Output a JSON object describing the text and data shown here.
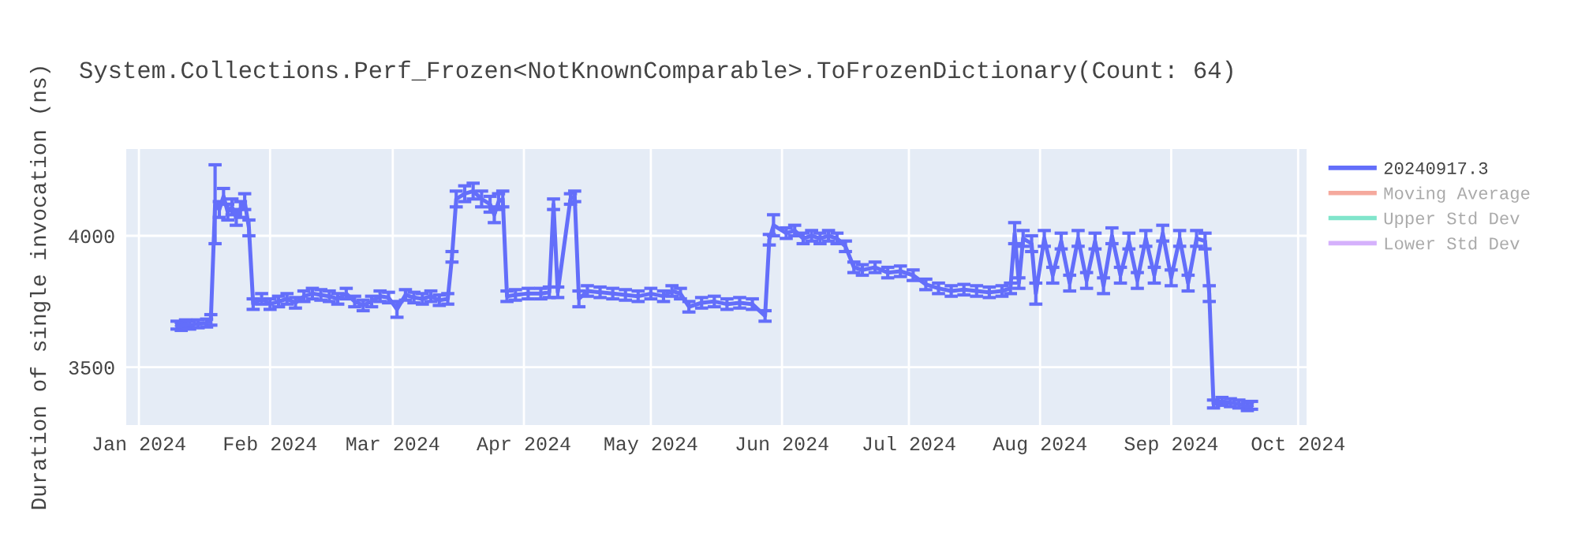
{
  "chart_data": {
    "type": "line",
    "title": "System.Collections.Perf_Frozen<NotKnownComparable>.ToFrozenDictionary(Count: 64)",
    "ylabel": "Duration of single invocation (ns)",
    "x": [
      "2024-01-10",
      "2024-01-11",
      "2024-01-12",
      "2024-01-13",
      "2024-01-15",
      "2024-01-17",
      "2024-01-18",
      "2024-01-19",
      "2024-01-20",
      "2024-01-21",
      "2024-01-22",
      "2024-01-23",
      "2024-01-24",
      "2024-01-25",
      "2024-01-26",
      "2024-01-27",
      "2024-01-28",
      "2024-01-30",
      "2024-02-01",
      "2024-02-03",
      "2024-02-05",
      "2024-02-07",
      "2024-02-09",
      "2024-02-11",
      "2024-02-13",
      "2024-02-15",
      "2024-02-17",
      "2024-02-19",
      "2024-02-21",
      "2024-02-23",
      "2024-02-25",
      "2024-02-27",
      "2024-02-29",
      "2024-03-02",
      "2024-03-04",
      "2024-03-06",
      "2024-03-08",
      "2024-03-10",
      "2024-03-12",
      "2024-03-14",
      "2024-03-15",
      "2024-03-16",
      "2024-03-18",
      "2024-03-20",
      "2024-03-22",
      "2024-03-24",
      "2024-03-25",
      "2024-03-26",
      "2024-03-27",
      "2024-03-28",
      "2024-03-30",
      "2024-04-02",
      "2024-04-05",
      "2024-04-07",
      "2024-04-08",
      "2024-04-09",
      "2024-04-12",
      "2024-04-13",
      "2024-04-14",
      "2024-04-16",
      "2024-04-19",
      "2024-04-22",
      "2024-04-25",
      "2024-04-28",
      "2024-05-01",
      "2024-05-04",
      "2024-05-06",
      "2024-05-08",
      "2024-05-10",
      "2024-05-13",
      "2024-05-16",
      "2024-05-19",
      "2024-05-22",
      "2024-05-25",
      "2024-05-28",
      "2024-05-29",
      "2024-05-30",
      "2024-06-02",
      "2024-06-04",
      "2024-06-06",
      "2024-06-08",
      "2024-06-10",
      "2024-06-12",
      "2024-06-14",
      "2024-06-16",
      "2024-06-18",
      "2024-06-20",
      "2024-06-23",
      "2024-06-26",
      "2024-06-29",
      "2024-07-02",
      "2024-07-05",
      "2024-07-08",
      "2024-07-11",
      "2024-07-14",
      "2024-07-17",
      "2024-07-20",
      "2024-07-23",
      "2024-07-25",
      "2024-07-26",
      "2024-07-27",
      "2024-07-28",
      "2024-07-30",
      "2024-07-31",
      "2024-08-02",
      "2024-08-04",
      "2024-08-06",
      "2024-08-08",
      "2024-08-10",
      "2024-08-12",
      "2024-08-14",
      "2024-08-16",
      "2024-08-18",
      "2024-08-20",
      "2024-08-22",
      "2024-08-24",
      "2024-08-26",
      "2024-08-28",
      "2024-08-30",
      "2024-09-01",
      "2024-09-03",
      "2024-09-05",
      "2024-09-07",
      "2024-09-09",
      "2024-09-10",
      "2024-09-11",
      "2024-09-13",
      "2024-09-15",
      "2024-09-17",
      "2024-09-19",
      "2024-09-20"
    ],
    "series": [
      {
        "name": "20240917.3",
        "color": "#636efa",
        "values": [
          3660,
          3655,
          3665,
          3660,
          3665,
          3668,
          3680,
          4120,
          4100,
          4150,
          4090,
          4110,
          4070,
          4100,
          4130,
          4030,
          3740,
          3760,
          3740,
          3750,
          3760,
          3745,
          3770,
          3780,
          3775,
          3770,
          3760,
          3780,
          3750,
          3735,
          3750,
          3770,
          3765,
          3720,
          3775,
          3765,
          3760,
          3770,
          3755,
          3760,
          3920,
          4140,
          4160,
          4170,
          4140,
          4120,
          4080,
          4130,
          4140,
          3770,
          3775,
          3780,
          3780,
          3785,
          4120,
          3785,
          4140,
          4150,
          3760,
          3790,
          3785,
          3780,
          3775,
          3770,
          3780,
          3770,
          3790,
          3780,
          3730,
          3745,
          3750,
          3740,
          3745,
          3740,
          3695,
          3985,
          4040,
          4010,
          4020,
          3990,
          4000,
          3990,
          4000,
          3990,
          3960,
          3880,
          3870,
          3880,
          3860,
          3865,
          3850,
          3815,
          3800,
          3790,
          3795,
          3790,
          3785,
          3790,
          3800,
          4010,
          3820,
          3990,
          3970,
          3780,
          3990,
          3850,
          3980,
          3820,
          3990,
          3830,
          3980,
          3810,
          4000,
          3850,
          3980,
          3830,
          3990,
          3850,
          4010,
          3840,
          3990,
          3820,
          3990,
          3980,
          3780,
          3360,
          3370,
          3365,
          3360,
          3350,
          3355
        ],
        "errors": [
          15,
          15,
          15,
          15,
          15,
          15,
          20,
          150,
          30,
          30,
          30,
          30,
          30,
          30,
          30,
          30,
          20,
          20,
          20,
          20,
          20,
          20,
          20,
          20,
          20,
          20,
          20,
          20,
          20,
          20,
          20,
          20,
          20,
          30,
          20,
          20,
          20,
          20,
          20,
          20,
          20,
          30,
          30,
          30,
          30,
          30,
          30,
          30,
          30,
          20,
          20,
          20,
          20,
          20,
          20,
          20,
          20,
          20,
          30,
          20,
          20,
          20,
          20,
          20,
          20,
          20,
          20,
          20,
          20,
          20,
          20,
          20,
          20,
          20,
          20,
          20,
          40,
          20,
          20,
          20,
          20,
          20,
          20,
          20,
          20,
          20,
          20,
          20,
          20,
          20,
          20,
          20,
          20,
          20,
          20,
          20,
          20,
          20,
          20,
          40,
          20,
          30,
          30,
          40,
          30,
          30,
          30,
          30,
          30,
          30,
          30,
          30,
          30,
          30,
          30,
          30,
          30,
          30,
          30,
          30,
          30,
          30,
          30,
          30,
          30,
          15,
          15,
          15,
          15,
          15,
          15
        ]
      },
      {
        "name": "Moving Average",
        "color": "#f5a99d",
        "values": [
          null,
          null,
          null,
          null,
          null,
          null,
          null,
          null,
          null,
          null,
          null,
          null,
          null,
          null,
          null,
          null,
          null,
          null,
          null,
          null,
          null,
          null,
          null,
          null,
          null,
          null,
          null,
          null,
          null,
          null,
          null,
          null,
          null,
          null,
          null,
          null,
          null,
          null,
          null,
          null,
          null,
          null,
          null,
          null,
          null,
          null,
          null,
          null,
          null,
          null,
          null,
          null,
          null,
          null,
          null,
          null,
          null,
          null,
          null,
          null,
          null,
          null,
          null,
          null,
          null,
          null,
          null,
          null,
          null,
          null,
          null,
          null,
          null,
          null,
          null,
          null,
          null,
          null,
          null,
          null,
          null,
          null,
          null,
          null,
          null,
          null,
          null,
          null,
          null,
          null,
          null,
          null,
          null,
          null,
          null,
          null,
          null,
          null,
          null,
          null,
          null,
          null,
          null,
          null,
          null,
          null,
          null,
          null,
          null,
          null,
          null,
          null,
          null,
          null,
          null,
          null,
          null,
          null,
          null,
          null,
          null,
          null,
          null,
          null,
          null,
          null,
          null,
          null,
          null,
          null,
          null
        ]
      },
      {
        "name": "Upper Std Dev",
        "color": "#80e5cb",
        "values": [
          null,
          null,
          null,
          null,
          null,
          null,
          null,
          null,
          null,
          null,
          null,
          null,
          null,
          null,
          null,
          null,
          null,
          null,
          null,
          null,
          null,
          null,
          null,
          null,
          null,
          null,
          null,
          null,
          null,
          null,
          null,
          null,
          null,
          null,
          null,
          null,
          null,
          null,
          null,
          null,
          null,
          null,
          null,
          null,
          null,
          null,
          null,
          null,
          null,
          null,
          null,
          null,
          null,
          null,
          null,
          null,
          null,
          null,
          null,
          null,
          null,
          null,
          null,
          null,
          null,
          null,
          null,
          null,
          null,
          null,
          null,
          null,
          null,
          null,
          null,
          null,
          null,
          null,
          null,
          null,
          null,
          null,
          null,
          null,
          null,
          null,
          null,
          null,
          null,
          null,
          null,
          null,
          null,
          null,
          null,
          null,
          null,
          null,
          null,
          null,
          null,
          null,
          null,
          null,
          null,
          null,
          null,
          null,
          null,
          null,
          null,
          null,
          null,
          null,
          null,
          null,
          null,
          null,
          null,
          null,
          null,
          null,
          null,
          null,
          null,
          null,
          null,
          null,
          null,
          null,
          null
        ]
      },
      {
        "name": "Lower Std Dev",
        "color": "#d5b1fc",
        "values": [
          null,
          null,
          null,
          null,
          null,
          null,
          null,
          null,
          null,
          null,
          null,
          null,
          null,
          null,
          null,
          null,
          null,
          null,
          null,
          null,
          null,
          null,
          null,
          null,
          null,
          null,
          null,
          null,
          null,
          null,
          null,
          null,
          null,
          null,
          null,
          null,
          null,
          null,
          null,
          null,
          null,
          null,
          null,
          null,
          null,
          null,
          null,
          null,
          null,
          null,
          null,
          null,
          null,
          null,
          null,
          null,
          null,
          null,
          null,
          null,
          null,
          null,
          null,
          null,
          null,
          null,
          null,
          null,
          null,
          null,
          null,
          null,
          null,
          null,
          null,
          null,
          null,
          null,
          null,
          null,
          null,
          null,
          null,
          null,
          null,
          null,
          null,
          null,
          null,
          null,
          null,
          null,
          null,
          null,
          null,
          null,
          null,
          null,
          null,
          null,
          null,
          null,
          null,
          null,
          null,
          null,
          null,
          null,
          null,
          null,
          null,
          null,
          null,
          null,
          null,
          null,
          null,
          null,
          null,
          null,
          null,
          null,
          null,
          null,
          null,
          null,
          null,
          null,
          null,
          null,
          null
        ]
      }
    ],
    "xlim": [
      "2023-12-29",
      "2024-10-03"
    ],
    "ylim": [
      3280,
      4330
    ],
    "xticks": [
      {
        "value": "2024-01-01",
        "label": "Jan 2024"
      },
      {
        "value": "2024-02-01",
        "label": "Feb 2024"
      },
      {
        "value": "2024-03-01",
        "label": "Mar 2024"
      },
      {
        "value": "2024-04-01",
        "label": "Apr 2024"
      },
      {
        "value": "2024-05-01",
        "label": "May 2024"
      },
      {
        "value": "2024-06-01",
        "label": "Jun 2024"
      },
      {
        "value": "2024-07-01",
        "label": "Jul 2024"
      },
      {
        "value": "2024-08-01",
        "label": "Aug 2024"
      },
      {
        "value": "2024-09-01",
        "label": "Sep 2024"
      },
      {
        "value": "2024-10-01",
        "label": "Oct 2024"
      }
    ],
    "yticks": [
      3500,
      4000
    ],
    "grid": true,
    "legend": "top right",
    "marker": "none",
    "line_style": "solid"
  }
}
